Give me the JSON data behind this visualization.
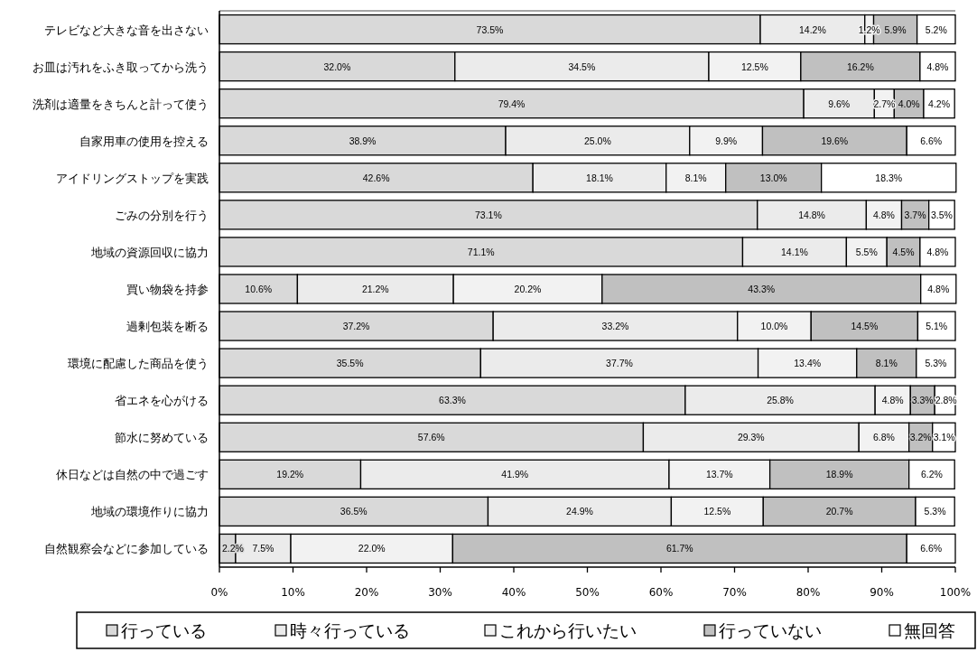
{
  "chart_data": {
    "type": "bar",
    "orientation": "horizontal",
    "stacked": true,
    "legend": "bottom",
    "grid": false,
    "categories": [
      "テレビなど大きな音を出さない",
      "お皿は汚れをふき取ってから洗う",
      "洗剤は適量をきちんと計って使う",
      "自家用車の使用を控える",
      "アイドリングストップを実践",
      "ごみの分別を行う",
      "地域の資源回収に協力",
      "買い物袋を持参",
      "過剰包装を断る",
      "環境に配慮した商品を使う",
      "省エネを心がける",
      "節水に努めている",
      "休日などは自然の中で過ごす",
      "地域の環境作りに協力",
      "自然観察会などに参加している"
    ],
    "xlim": [
      0,
      100
    ],
    "xticks": [
      {
        "value": 0,
        "label": "0%"
      },
      {
        "value": 10,
        "label": "10%"
      },
      {
        "value": 20,
        "label": "20%"
      },
      {
        "value": 30,
        "label": "30%"
      },
      {
        "value": 40,
        "label": "40%"
      },
      {
        "value": 50,
        "label": "50%"
      },
      {
        "value": 60,
        "label": "60%"
      },
      {
        "value": 70,
        "label": "70%"
      },
      {
        "value": 80,
        "label": "80%"
      },
      {
        "value": 90,
        "label": "90%"
      },
      {
        "value": 100,
        "label": "100%"
      }
    ],
    "series": [
      {
        "name": "行っている",
        "color": "#d9d9d9",
        "values": [
          73.5,
          32.0,
          79.4,
          38.9,
          42.6,
          73.1,
          71.1,
          10.6,
          37.2,
          35.5,
          63.3,
          57.6,
          19.2,
          36.5,
          2.2
        ],
        "value_labels": [
          "73.5%",
          "32.0%",
          "79.4%",
          "38.9%",
          "42.6%",
          "73.1%",
          "71.1%",
          "10.6%",
          "37.2%",
          "35.5%",
          "63.3%",
          "57.6%",
          "19.2%",
          "36.5%",
          "2.2%"
        ]
      },
      {
        "name": "時々行っている",
        "color": "#ebebeb",
        "values": [
          14.2,
          34.5,
          9.6,
          25.0,
          18.1,
          14.8,
          14.1,
          21.2,
          33.2,
          37.7,
          25.8,
          29.3,
          41.9,
          24.9,
          7.5
        ],
        "value_labels": [
          "14.2%",
          "34.5%",
          "9.6%",
          "25.0%",
          "18.1%",
          "14.8%",
          "14.1%",
          "21.2%",
          "33.2%",
          "37.7%",
          "25.8%",
          "29.3%",
          "41.9%",
          "24.9%",
          "7.5%"
        ]
      },
      {
        "name": "これから行いたい",
        "color": "#f2f2f2",
        "values": [
          1.2,
          12.5,
          2.7,
          9.9,
          8.1,
          4.8,
          5.5,
          20.2,
          10.0,
          13.4,
          4.8,
          6.8,
          13.7,
          12.5,
          22.0
        ],
        "value_labels": [
          "1.2%",
          "12.5%",
          "2.7%",
          "9.9%",
          "8.1%",
          "4.8%",
          "5.5%",
          "20.2%",
          "10.0%",
          "13.4%",
          "4.8%",
          "6.8%",
          "13.7%",
          "12.5%",
          "22.0%"
        ]
      },
      {
        "name": "行っていない",
        "color": "#c0c0c0",
        "values": [
          5.9,
          16.2,
          4.0,
          19.6,
          13.0,
          3.7,
          4.5,
          43.3,
          14.5,
          8.1,
          3.3,
          3.2,
          18.9,
          20.7,
          61.7
        ],
        "value_labels": [
          "5.9%",
          "16.2%",
          "4.0%",
          "19.6%",
          "13.0%",
          "3.7%",
          "4.5%",
          "43.3%",
          "14.5%",
          "8.1%",
          "3.3%",
          "3.2%",
          "18.9%",
          "20.7%",
          "61.7%"
        ]
      },
      {
        "name": "無回答",
        "color": "#ffffff",
        "values": [
          5.2,
          4.8,
          4.2,
          6.6,
          18.3,
          3.5,
          4.8,
          4.8,
          5.1,
          5.3,
          2.8,
          3.1,
          6.2,
          5.3,
          6.6
        ],
        "value_labels": [
          "5.2%",
          "4.8%",
          "4.2%",
          "6.6%",
          "18.3%",
          "3.5%",
          "4.8%",
          "4.8%",
          "5.1%",
          "5.3%",
          "2.8%",
          "3.1%",
          "6.2%",
          "5.3%",
          "6.6%"
        ]
      }
    ]
  }
}
